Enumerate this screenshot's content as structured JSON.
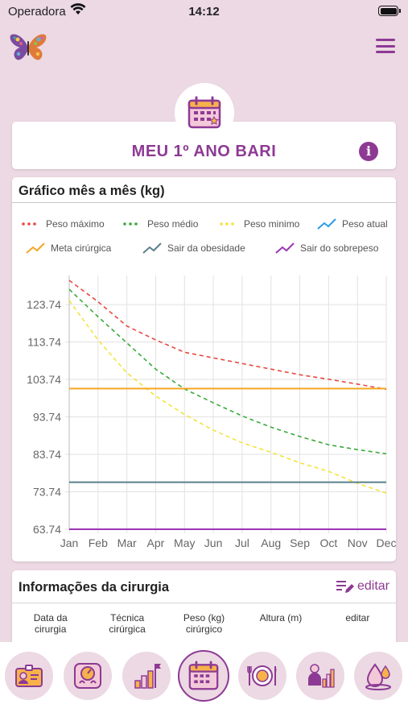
{
  "status_bar": {
    "carrier": "Operadora",
    "time": "14:12"
  },
  "header": {
    "menu_icon": "hamburger-menu-icon",
    "logo_icon": "butterfly-logo-icon"
  },
  "title_card": {
    "title": "MEU 1º ANO BARI",
    "info_icon": "info-icon"
  },
  "chart_card": {
    "title": "Gráfico mês a mês (kg)",
    "legend": [
      {
        "label": "Peso máximo",
        "color": "#e8473f",
        "style": "dotted"
      },
      {
        "label": "Peso médio",
        "color": "#3aaa3a",
        "style": "dotted"
      },
      {
        "label": "Peso minimo",
        "color": "#f4e23a",
        "style": "dotted"
      },
      {
        "label": "Peso atual",
        "color": "#2b9be8",
        "style": "line"
      },
      {
        "label": "Meta cirúrgica",
        "color": "#f5a623",
        "style": "line"
      },
      {
        "label": "Sair da obesidade",
        "color": "#5b7f8c",
        "style": "line"
      },
      {
        "label": "Sair do sobrepeso",
        "color": "#9b35b5",
        "style": "line"
      }
    ]
  },
  "chart_data": {
    "type": "line",
    "x": [
      "Jan",
      "Feb",
      "Mar",
      "Apr",
      "May",
      "Jun",
      "Jul",
      "Aug",
      "Sep",
      "Oct",
      "Nov",
      "Dec"
    ],
    "y_ticks": [
      "63.74",
      "73.74",
      "83.74",
      "93.74",
      "103.74",
      "113.74",
      "123.74"
    ],
    "ylim": [
      63.74,
      131.5
    ],
    "grid": true,
    "series": [
      {
        "name": "Peso máximo",
        "values": [
          130.2,
          124.5,
          118.0,
          114.3,
          111.0,
          109.5,
          108.0,
          106.5,
          105.0,
          103.8,
          102.5,
          101.1
        ],
        "dashed": true,
        "color": "#e8473f"
      },
      {
        "name": "Peso médio",
        "values": [
          127.8,
          120.5,
          113.5,
          106.5,
          101.2,
          97.5,
          94.0,
          91.0,
          88.5,
          86.3,
          85.0,
          83.9
        ],
        "dashed": true,
        "color": "#3aaa3a"
      },
      {
        "name": "Peso minimo",
        "values": [
          124.8,
          114.3,
          105.5,
          99.3,
          94.4,
          90.2,
          86.8,
          84.3,
          81.5,
          79.2,
          76.0,
          73.4
        ],
        "dashed": true,
        "color": "#f4e23a"
      },
      {
        "name": "Meta cirúrgica",
        "values": [
          101.3,
          101.3,
          101.3,
          101.3,
          101.3,
          101.3,
          101.3,
          101.3,
          101.3,
          101.3,
          101.3,
          101.3
        ],
        "dashed": false,
        "color": "#f5a623"
      },
      {
        "name": "Sair da obesidade",
        "values": [
          76.3,
          76.3,
          76.3,
          76.3,
          76.3,
          76.3,
          76.3,
          76.3,
          76.3,
          76.3,
          76.3,
          76.3
        ],
        "dashed": false,
        "color": "#5b7f8c"
      },
      {
        "name": "Sair do sobrepeso",
        "values": [
          63.74,
          63.74,
          63.74,
          63.74,
          63.74,
          63.74,
          63.74,
          63.74,
          63.74,
          63.74,
          63.74,
          63.74
        ],
        "dashed": false,
        "color": "#9b35b5"
      }
    ]
  },
  "info_card": {
    "title": "Informações da cirurgia",
    "edit_label": "editar",
    "columns": [
      "Data da\ncirurgia",
      "Técnica\ncirúrgica",
      "Peso (kg)\ncirúrgico",
      "Altura (m)",
      "editar"
    ]
  },
  "bottom_nav": [
    {
      "icon": "id-card-icon",
      "active": false
    },
    {
      "icon": "scale-icon",
      "active": false
    },
    {
      "icon": "progress-flag-icon",
      "active": false
    },
    {
      "icon": "calendar-icon",
      "active": true
    },
    {
      "icon": "meal-plate-icon",
      "active": false
    },
    {
      "icon": "community-stats-icon",
      "active": false
    },
    {
      "icon": "water-drop-icon",
      "active": false
    }
  ],
  "colors": {
    "accent": "#8d3a94",
    "background": "#ecd9e3"
  }
}
